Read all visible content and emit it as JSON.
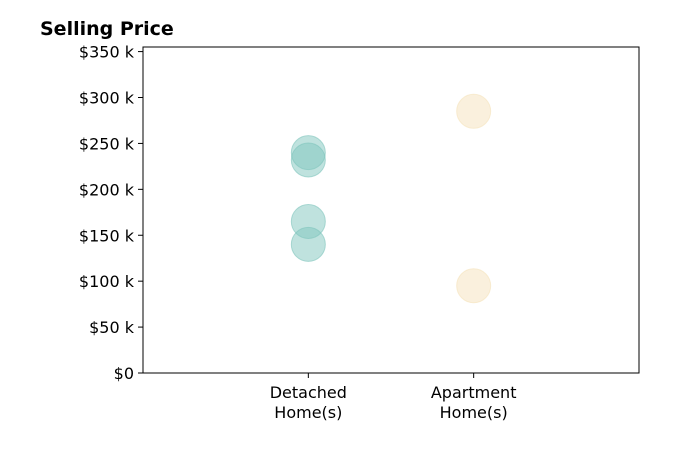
{
  "chart_data": {
    "type": "scatter",
    "title": "Selling Price",
    "xlabel": "",
    "ylabel": "",
    "categories": [
      "Detached\nHome(s)",
      "Apartment\nHome(s)"
    ],
    "y_ticks": [
      0,
      50000,
      100000,
      150000,
      200000,
      250000,
      300000,
      350000
    ],
    "y_tick_labels": [
      "$0",
      "$50 k",
      "$100 k",
      "$150 k",
      "$200 k",
      "$250 k",
      "$300 k",
      "$350 k"
    ],
    "ylim": [
      0,
      355000
    ],
    "xlim": [
      -1,
      2
    ],
    "grid": false,
    "series": [
      {
        "category": "Detached\nHome(s)",
        "values": [
          240000,
          232000,
          165000,
          140000
        ],
        "color": "#7fc5bd"
      },
      {
        "category": "Apartment\nHome(s)",
        "values": [
          285000,
          95000
        ],
        "color": "#f5e2bb"
      }
    ]
  }
}
